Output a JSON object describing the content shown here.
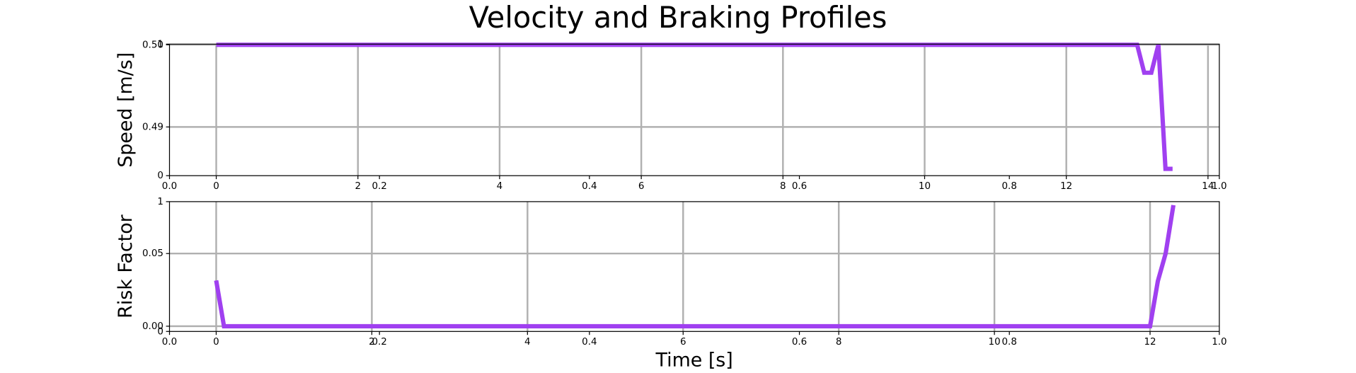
{
  "chart_data": [
    {
      "type": "line",
      "title": "Velocity and Braking Profiles",
      "ylabel": "Speed [m/s]",
      "xlim": [
        -0.66,
        14.16
      ],
      "xticks": [
        0,
        2,
        4,
        6,
        8,
        10,
        12,
        14
      ],
      "ylim": [
        0.48407,
        0.50008
      ],
      "yticks": [
        {
          "value": 0.5,
          "label": "0.50"
        },
        0.49
      ],
      "x2lim": [
        0,
        1
      ],
      "x2ticks": [
        {
          "value": 0,
          "label": "0.0"
        },
        0.2,
        0.4,
        0.6,
        0.8,
        {
          "value": 1,
          "label": "1.0"
        }
      ],
      "y2lim": [
        0,
        1
      ],
      "y2ticks": [
        0,
        1
      ],
      "grid": true,
      "series": [
        {
          "color": "#a040f0",
          "x": [
            0,
            13.0,
            13.1,
            13.2,
            13.3,
            13.4,
            13.5
          ],
          "values": [
            0.5,
            0.5,
            0.4966,
            0.4966,
            0.5,
            0.4849,
            0.4849
          ]
        }
      ]
    },
    {
      "type": "line",
      "ylabel": "Risk Factor",
      "xlabel": "Time [s]",
      "xlim": [
        -0.6,
        12.89
      ],
      "xticks": [
        0,
        2,
        4,
        6,
        8,
        10,
        12
      ],
      "ylim": [
        -0.0036,
        0.0857
      ],
      "yticks": [
        {
          "value": 0,
          "label": "0.00"
        },
        0.05
      ],
      "x2lim": [
        0,
        1
      ],
      "x2ticks": [
        {
          "value": 0,
          "label": "0.0"
        },
        0.2,
        0.4,
        0.6,
        0.8,
        {
          "value": 1,
          "label": "1.0"
        }
      ],
      "y2lim": [
        0,
        1
      ],
      "y2ticks": [
        0,
        1
      ],
      "grid": true,
      "series": [
        {
          "color": "#a040f0",
          "x": [
            0,
            0.1,
            12.0,
            12.1,
            12.2,
            12.3
          ],
          "values": [
            0.0315,
            0,
            0,
            0.031,
            0.05,
            0.0833
          ]
        }
      ]
    }
  ]
}
